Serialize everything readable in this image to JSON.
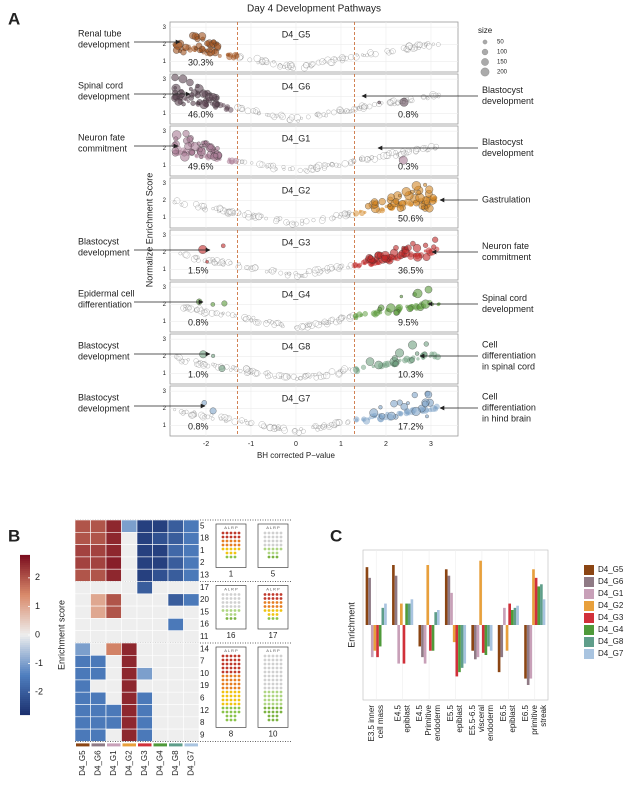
{
  "figure": {
    "panel_a": {
      "label": "A",
      "title": "Day 4 Development Pathways",
      "x_label": "BH corrected P−value",
      "y_label": "Normalize Enrichment Score",
      "xlim": [
        -2.8,
        3.6
      ],
      "xticks": [
        -2,
        -1,
        0,
        1,
        2,
        3
      ],
      "ylim": [
        0.4,
        3.3
      ],
      "yticks": [
        1,
        2,
        3
      ],
      "cutoffs": [
        -1.3,
        1.3
      ],
      "size_legend": {
        "title": "size",
        "values": [
          50,
          100,
          150,
          200
        ]
      },
      "subplots": [
        {
          "name": "D4_G5",
          "color": "#a0521e",
          "left_pct": "30.3%",
          "left_note": [
            "Renal tube",
            "development"
          ]
        },
        {
          "name": "D4_G6",
          "color": "#5e4654",
          "left_pct": "46.0%",
          "right_pct": "0.8%",
          "left_note": [
            "Spinal cord",
            "development"
          ],
          "right_note": [
            "Blastocyst",
            "development"
          ]
        },
        {
          "name": "D4_G1",
          "color": "#a97b94",
          "left_pct": "49.6%",
          "right_pct": "0.3%",
          "left_note": [
            "Neuron fate",
            "commitment"
          ],
          "right_note": [
            "Blastocyst",
            "development"
          ]
        },
        {
          "name": "D4_G2",
          "color": "#d4892a",
          "right_pct": "50.6%",
          "right_note": [
            "Gastrulation"
          ]
        },
        {
          "name": "D4_G3",
          "color": "#c02828",
          "left_pct": "1.5%",
          "right_pct": "36.5%",
          "left_note": [
            "Blastocyst",
            "development"
          ],
          "right_note": [
            "Neuron fate",
            "commitment"
          ]
        },
        {
          "name": "D4_G4",
          "color": "#5a9a3a",
          "left_pct": "0.8%",
          "right_pct": "9.5%",
          "left_note": [
            "Epidermal cell",
            "differentiation"
          ],
          "right_note": [
            "Spinal cord",
            "development"
          ]
        },
        {
          "name": "D4_G8",
          "color": "#6fa080",
          "left_pct": "1.0%",
          "right_pct": "10.3%",
          "left_note": [
            "Blastocyst",
            "development"
          ],
          "right_note": [
            "Cell",
            "differentiation",
            "in spinal cord"
          ]
        },
        {
          "name": "D4_G7",
          "color": "#7fa4c8",
          "left_pct": "0.8%",
          "right_pct": "17.2%",
          "left_note": [
            "Blastocyst",
            "development"
          ],
          "right_note": [
            "Cell",
            "differentiation",
            "in hind brain"
          ]
        }
      ]
    },
    "panel_b": {
      "label": "B",
      "colorbar": {
        "title": "Enrichment score",
        "lim": [
          -2.8,
          2.8
        ],
        "ticks": [
          2,
          1,
          0,
          -1,
          -2
        ]
      },
      "columns": [
        "D4_G5",
        "D4_G6",
        "D4_G1",
        "D4_G2",
        "D4_G3",
        "D4_G4",
        "D4_G8",
        "D4_G7"
      ],
      "column_colors": [
        "#8b4513",
        "#8f7a85",
        "#c8a0b8",
        "#e8a03c",
        "#d1303a",
        "#4f9a3a",
        "#5f9e8a",
        "#a9c4e0"
      ],
      "blocks": [
        {
          "rows": [
            "5",
            "18",
            "1",
            "2",
            "13"
          ],
          "icons": [
            "1",
            "5"
          ],
          "values": [
            [
              2,
              2,
              2.5,
              -1,
              -2.5,
              -2.5,
              -2,
              -1.5
            ],
            [
              2,
              2,
              2.5,
              0,
              -2.5,
              -2.2,
              -2,
              -1.5
            ],
            [
              2.2,
              2.2,
              2.5,
              0,
              -2.5,
              -2.5,
              -1.8,
              -1.5
            ],
            [
              2.2,
              2.2,
              2.6,
              0,
              -2.5,
              -2.5,
              -2,
              -1.5
            ],
            [
              2,
              2,
              2.5,
              0,
              -2.5,
              -2.2,
              -2,
              -1.5
            ]
          ]
        },
        {
          "rows": [
            "17",
            "20",
            "15",
            "16",
            "11"
          ],
          "icons": [
            "16",
            "17"
          ],
          "values": [
            [
              0,
              0,
              0,
              0,
              -2,
              0,
              0,
              0
            ],
            [
              0,
              1,
              2,
              0,
              0,
              0,
              -2,
              -1.5
            ],
            [
              0,
              1,
              2,
              0,
              0,
              0,
              0,
              0
            ],
            [
              0,
              0,
              0,
              0,
              0,
              0,
              -1.5,
              0
            ],
            [
              0,
              0,
              0,
              0,
              0,
              0,
              0,
              0
            ]
          ]
        },
        {
          "rows": [
            "14",
            "7",
            "10",
            "19",
            "6",
            "12",
            "8",
            "9"
          ],
          "icons": [
            "8",
            "10"
          ],
          "values": [
            [
              -1,
              0,
              1.5,
              2.5,
              0,
              0,
              0,
              0
            ],
            [
              -1.5,
              -1.5,
              0,
              2.5,
              0,
              0,
              0,
              0
            ],
            [
              -1.5,
              -1.5,
              0,
              2.5,
              -1,
              0,
              0,
              0
            ],
            [
              -1.5,
              0,
              0,
              2.5,
              0,
              0,
              0,
              0
            ],
            [
              -1.5,
              -1.5,
              0,
              2.5,
              -1.5,
              0,
              0,
              0
            ],
            [
              -1.5,
              -1.5,
              -1.5,
              2.5,
              -1.5,
              0,
              0,
              0
            ],
            [
              -1.5,
              -1.5,
              -1.5,
              2.5,
              -1.5,
              0,
              0,
              0
            ],
            [
              -1.5,
              -1.5,
              0,
              2.5,
              -1.5,
              0,
              0,
              0
            ]
          ]
        }
      ],
      "icon_header": "A L R P"
    },
    "panel_c": {
      "label": "C",
      "type": "bar",
      "y_label": "Enrichment",
      "ylim": [
        -3.5,
        3.5
      ],
      "categories": [
        [
          "E3.5 inner",
          "cell mass"
        ],
        [
          "E4.5",
          "epiblast"
        ],
        [
          "E4.5",
          "Primitive",
          "endoderm"
        ],
        [
          "E5.5",
          "epiblast"
        ],
        [
          "E5.5-6.5",
          "visceral",
          "endoderm"
        ],
        [
          "E6.5",
          "epiblast"
        ],
        [
          "E6.5",
          "primitive",
          "streak"
        ]
      ],
      "series": [
        {
          "name": "D4_G5",
          "color": "#8b4513",
          "values": [
            2.7,
            2.8,
            -1.0,
            2.6,
            -1.2,
            -2.2,
            -2.5
          ]
        },
        {
          "name": "D4_G6",
          "color": "#8f7a85",
          "values": [
            2.2,
            2.3,
            -1.5,
            2.3,
            -1.6,
            -1.5,
            -2.8
          ]
        },
        {
          "name": "D4_G1",
          "color": "#c8a0b8",
          "values": [
            -1.5,
            -1.8,
            -1.8,
            1.5,
            -1.5,
            0.8,
            -2.5
          ]
        },
        {
          "name": "D4_G2",
          "color": "#e8a03c",
          "values": [
            -1.2,
            1.0,
            2.8,
            -0.8,
            3.0,
            -1.2,
            2.6
          ]
        },
        {
          "name": "D4_G3",
          "color": "#d1303a",
          "values": [
            -1.5,
            -1.8,
            -1.2,
            -2.4,
            -1.3,
            1.0,
            2.2
          ]
        },
        {
          "name": "D4_G4",
          "color": "#4f9a3a",
          "values": [
            -1.0,
            1.0,
            -1.2,
            -2.2,
            -1.4,
            0.7,
            1.8
          ]
        },
        {
          "name": "D4_G8",
          "color": "#5f9e8a",
          "values": [
            0.8,
            1.0,
            0.6,
            -2.0,
            -1.0,
            0.8,
            1.9
          ]
        },
        {
          "name": "D4_G7",
          "color": "#a9c4e0",
          "values": [
            1.0,
            1.2,
            0.7,
            -1.8,
            -1.2,
            0.9,
            1.2
          ]
        }
      ]
    }
  }
}
